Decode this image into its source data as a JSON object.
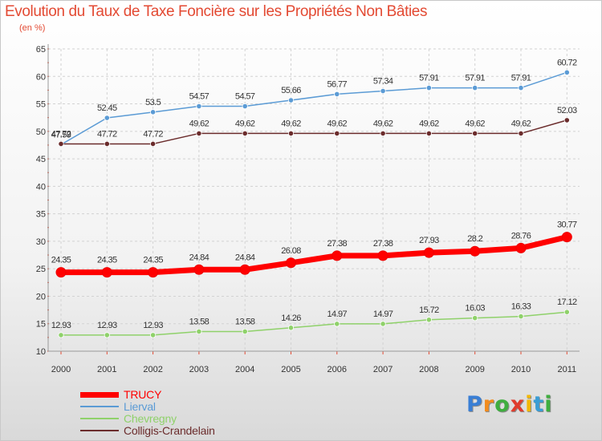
{
  "chart_data": {
    "type": "line",
    "title": "Evolution du Taux de Taxe Foncière sur les Propriétés Non Bâties",
    "subtitle": "(en %)",
    "xlabel": "",
    "ylabel": "",
    "ylim": [
      10,
      65
    ],
    "yticks": [
      10,
      15,
      20,
      25,
      30,
      35,
      40,
      45,
      50,
      55,
      60,
      65
    ],
    "categories": [
      "2000",
      "2001",
      "2002",
      "2003",
      "2004",
      "2005",
      "2006",
      "2007",
      "2008",
      "2009",
      "2010",
      "2011"
    ],
    "grid": true,
    "legend": "bottom-left",
    "series": [
      {
        "name": "Lierval",
        "color": "#5b9bd5",
        "values": [
          47.59,
          52.45,
          53.5,
          54.57,
          54.57,
          55.66,
          56.77,
          57.34,
          57.91,
          57.91,
          57.91,
          60.72
        ],
        "labels": [
          "47.59",
          "52.45",
          "53.5",
          "54.57",
          "54.57",
          "55.66",
          "56.77",
          "57.34",
          "57.91",
          "57.91",
          "57.91",
          "60.72"
        ]
      },
      {
        "name": "Colligis-Crandelain",
        "color": "#6b2c2c",
        "values": [
          47.72,
          47.72,
          47.72,
          49.62,
          49.62,
          49.62,
          49.62,
          49.62,
          49.62,
          49.62,
          49.62,
          52.03
        ],
        "labels": [
          "47.72",
          "47.72",
          "47.72",
          "49.62",
          "49.62",
          "49.62",
          "49.62",
          "49.62",
          "49.62",
          "49.62",
          "49.62",
          "52.03"
        ]
      },
      {
        "name": "TRUCY",
        "color": "#ff0000",
        "values": [
          24.35,
          24.35,
          24.35,
          24.84,
          24.84,
          26.08,
          27.38,
          27.38,
          27.93,
          28.2,
          28.76,
          30.77
        ],
        "labels": [
          "24.35",
          "24.35",
          "24.35",
          "24.84",
          "24.84",
          "26.08",
          "27.38",
          "27.38",
          "27.93",
          "28.2",
          "28.76",
          "30.77"
        ]
      },
      {
        "name": "Chevregny",
        "color": "#8fd16a",
        "values": [
          12.93,
          12.93,
          12.93,
          13.58,
          13.58,
          14.26,
          14.97,
          14.97,
          15.72,
          16.03,
          16.33,
          17.12
        ],
        "labels": [
          "12.93",
          "12.93",
          "12.93",
          "13.58",
          "13.58",
          "14.26",
          "14.97",
          "14.97",
          "15.72",
          "16.03",
          "16.33",
          "17.12"
        ]
      }
    ],
    "legend_order": [
      "TRUCY",
      "Lierval",
      "Chevregny",
      "Colligis-Crandelain"
    ]
  },
  "logo": {
    "text": "Proxiti",
    "letters": [
      "P",
      "r",
      "o",
      "x",
      "i",
      "t",
      "i"
    ],
    "colors": [
      "#3a7fd5",
      "#f28c1e",
      "#3fae3f",
      "#e03c2d",
      "#f2b705",
      "#3a9dd5",
      "#3fae3f"
    ]
  }
}
